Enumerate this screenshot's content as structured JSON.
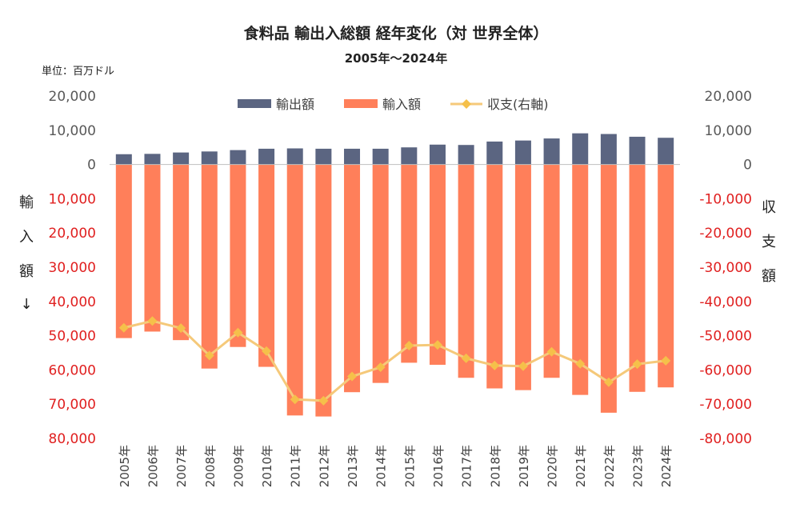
{
  "chart_data": {
    "type": "bar",
    "title": "食料品 輸出入総額 経年変化（対 世界全体）",
    "subtitle": "2005年～2024年",
    "unit_label": "単位：百万ドル",
    "categories": [
      "2005年",
      "2006年",
      "2007年",
      "2008年",
      "2009年",
      "2010年",
      "2011年",
      "2012年",
      "2013年",
      "2014年",
      "2015年",
      "2016年",
      "2017年",
      "2018年",
      "2019年",
      "2020年",
      "2021年",
      "2022年",
      "2023年",
      "2024年"
    ],
    "series": [
      {
        "name": "輸出額",
        "type": "bar",
        "color": "#5b6581",
        "values": [
          3000,
          3100,
          3500,
          3800,
          4200,
          4600,
          4700,
          4600,
          4600,
          4600,
          5000,
          5800,
          5700,
          6700,
          7000,
          7600,
          9100,
          8900,
          8100,
          7800
        ]
      },
      {
        "name": "輸入額",
        "type": "bar",
        "color": "#ff7f5a",
        "values": [
          50700,
          48800,
          51300,
          59600,
          53300,
          59100,
          73300,
          73600,
          66500,
          63800,
          57900,
          58500,
          62300,
          65400,
          65900,
          62300,
          67300,
          72500,
          66400,
          65100
        ]
      },
      {
        "name": "収支(右軸)",
        "type": "line",
        "color": "#f5c97a",
        "marker_color": "#f5c04a",
        "values": [
          -47700,
          -45700,
          -47800,
          -55800,
          -49100,
          -54500,
          -68600,
          -69000,
          -61900,
          -59200,
          -52900,
          -52700,
          -56600,
          -58700,
          -58900,
          -54700,
          -58200,
          -63600,
          -58300,
          -57300
        ]
      }
    ],
    "left_axis": {
      "ticks_above": [
        "20,000",
        "10,000",
        "0"
      ],
      "ticks_below": [
        "10,000",
        "20,000",
        "30,000",
        "40,000",
        "50,000",
        "60,000",
        "70,000",
        "80,000"
      ],
      "range": [
        -80000,
        20000
      ],
      "title_chars": [
        "輸",
        "入",
        "額",
        "↓"
      ]
    },
    "right_axis": {
      "ticks": [
        "20,000",
        "10,000",
        "0",
        "-10,000",
        "-20,000",
        "-30,000",
        "-40,000",
        "-50,000",
        "-60,000",
        "-70,000",
        "-80,000"
      ],
      "range": [
        -80000,
        20000
      ],
      "title_chars": [
        "収",
        "支",
        "額"
      ]
    },
    "legend_position": "top",
    "grid": false
  }
}
